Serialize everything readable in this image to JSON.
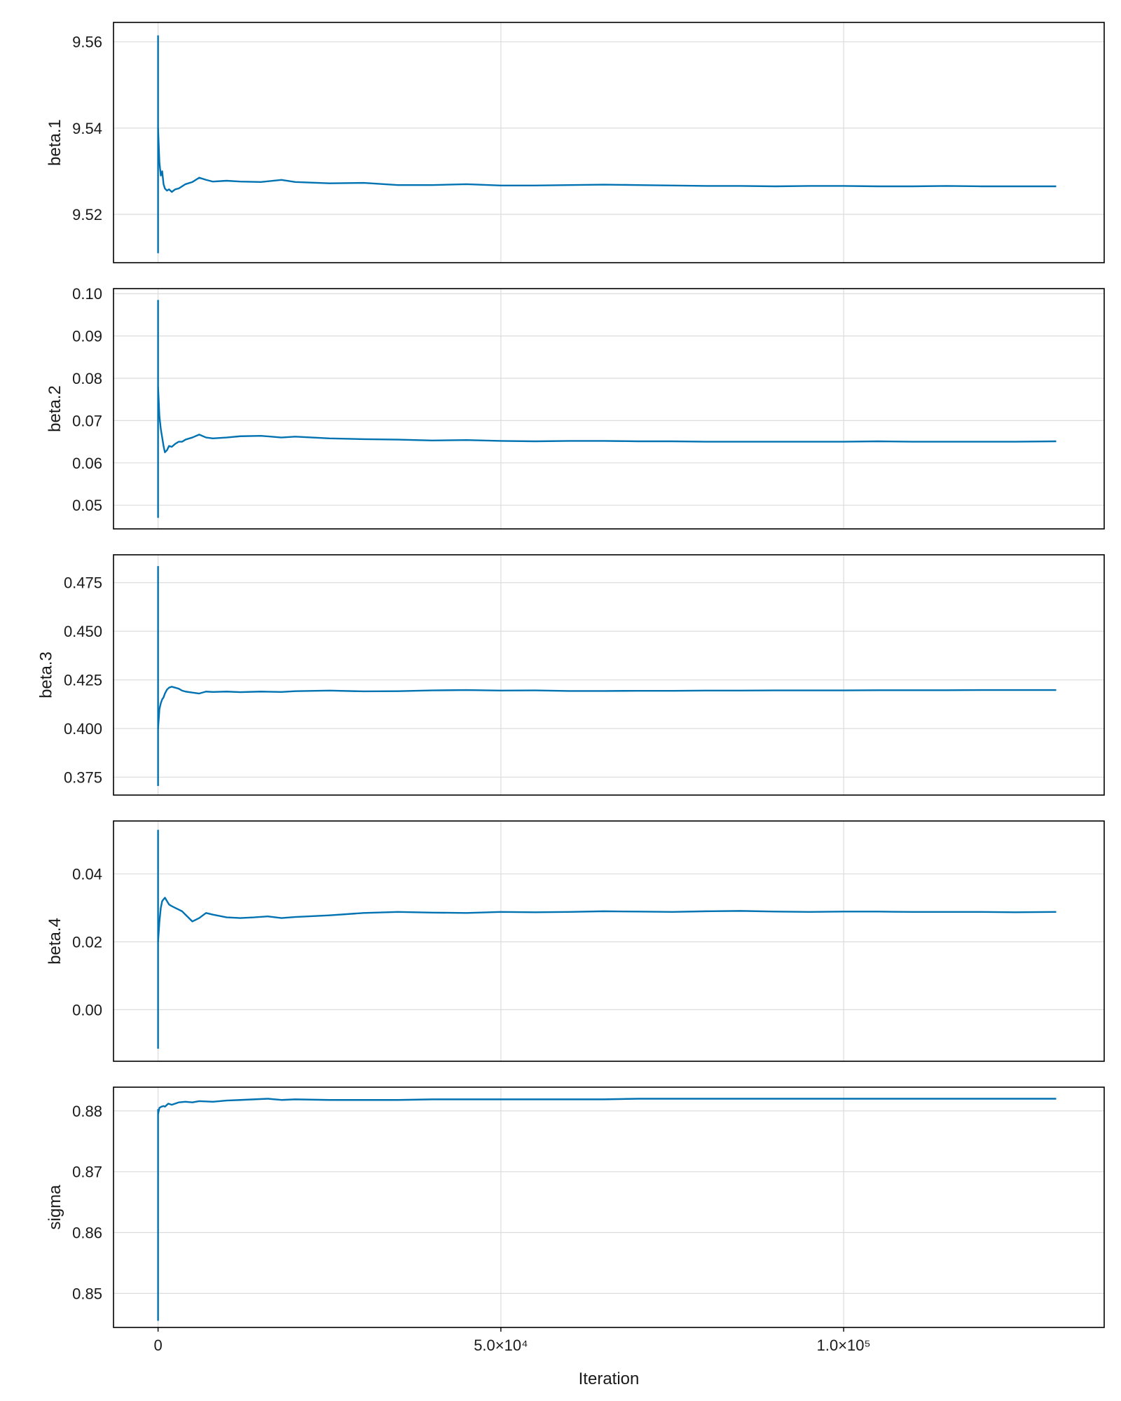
{
  "chart_data": {
    "type": "line",
    "xlabel": "Iteration",
    "xlim": [
      -6500,
      138000
    ],
    "x_ticks": [
      {
        "value": 0,
        "label": "0"
      },
      {
        "value": 50000,
        "label": "5.0×10⁴"
      },
      {
        "value": 100000,
        "label": "1.0×10⁵"
      }
    ],
    "line_color": "#0072B2",
    "grid": true,
    "panels": [
      {
        "ylabel": "beta.1",
        "ylim": [
          9.5088,
          9.5645
        ],
        "y_ticks": [
          {
            "value": 9.52,
            "label": "9.52"
          },
          {
            "value": 9.54,
            "label": "9.54"
          },
          {
            "value": 9.56,
            "label": "9.56"
          }
        ],
        "spike": {
          "x": 0,
          "min": 9.511,
          "max": 9.5615
        },
        "x": [
          0,
          200,
          400,
          600,
          800,
          1000,
          1300,
          1600,
          2000,
          2500,
          3000,
          3500,
          4000,
          5000,
          6000,
          7000,
          8000,
          10000,
          12000,
          15000,
          18000,
          20000,
          25000,
          30000,
          35000,
          40000,
          45000,
          50000,
          55000,
          60000,
          65000,
          70000,
          75000,
          80000,
          85000,
          90000,
          95000,
          100000,
          105000,
          110000,
          115000,
          120000,
          125000,
          131000
        ],
        "y": [
          9.54,
          9.532,
          9.529,
          9.53,
          9.527,
          9.526,
          9.5255,
          9.5258,
          9.5252,
          9.5258,
          9.526,
          9.5265,
          9.527,
          9.5275,
          9.5285,
          9.528,
          9.5276,
          9.5278,
          9.5276,
          9.5275,
          9.528,
          9.5275,
          9.5272,
          9.5273,
          9.5268,
          9.5268,
          9.527,
          9.5267,
          9.5267,
          9.5268,
          9.5269,
          9.5268,
          9.5267,
          9.5266,
          9.5266,
          9.5265,
          9.5266,
          9.5266,
          9.5265,
          9.5265,
          9.5266,
          9.5265,
          9.5265,
          9.5265
        ]
      },
      {
        "ylabel": "beta.2",
        "ylim": [
          0.0444,
          0.1012
        ],
        "y_ticks": [
          {
            "value": 0.05,
            "label": "0.05"
          },
          {
            "value": 0.06,
            "label": "0.06"
          },
          {
            "value": 0.07,
            "label": "0.07"
          },
          {
            "value": 0.08,
            "label": "0.08"
          },
          {
            "value": 0.09,
            "label": "0.09"
          },
          {
            "value": 0.1,
            "label": "0.10"
          }
        ],
        "spike": {
          "x": 0,
          "min": 0.047,
          "max": 0.0985
        },
        "x": [
          0,
          200,
          400,
          600,
          800,
          1000,
          1300,
          1600,
          2000,
          2500,
          3000,
          3500,
          4000,
          5000,
          6000,
          7000,
          8000,
          10000,
          12000,
          15000,
          18000,
          20000,
          25000,
          30000,
          35000,
          40000,
          45000,
          50000,
          55000,
          60000,
          65000,
          70000,
          75000,
          80000,
          85000,
          90000,
          95000,
          100000,
          105000,
          110000,
          115000,
          120000,
          125000,
          131000
        ],
        "y": [
          0.078,
          0.071,
          0.068,
          0.066,
          0.064,
          0.0625,
          0.063,
          0.064,
          0.0638,
          0.0645,
          0.065,
          0.065,
          0.0655,
          0.066,
          0.0667,
          0.066,
          0.0658,
          0.066,
          0.0663,
          0.0664,
          0.066,
          0.0662,
          0.0658,
          0.0656,
          0.0655,
          0.0653,
          0.0654,
          0.0652,
          0.0651,
          0.0652,
          0.0652,
          0.0651,
          0.0651,
          0.065,
          0.065,
          0.065,
          0.065,
          0.065,
          0.0651,
          0.065,
          0.065,
          0.065,
          0.065,
          0.0651
        ]
      },
      {
        "ylabel": "beta.3",
        "ylim": [
          0.3658,
          0.4893
        ],
        "y_ticks": [
          {
            "value": 0.375,
            "label": "0.375"
          },
          {
            "value": 0.4,
            "label": "0.400"
          },
          {
            "value": 0.425,
            "label": "0.425"
          },
          {
            "value": 0.45,
            "label": "0.450"
          },
          {
            "value": 0.475,
            "label": "0.475"
          }
        ],
        "spike": {
          "x": 0,
          "min": 0.3705,
          "max": 0.4835
        },
        "x": [
          0,
          200,
          400,
          600,
          800,
          1000,
          1300,
          1600,
          2000,
          2500,
          3000,
          3500,
          4000,
          5000,
          6000,
          7000,
          8000,
          10000,
          12000,
          15000,
          18000,
          20000,
          25000,
          30000,
          35000,
          40000,
          45000,
          50000,
          55000,
          60000,
          65000,
          70000,
          75000,
          80000,
          85000,
          90000,
          95000,
          100000,
          105000,
          110000,
          115000,
          120000,
          125000,
          131000
        ],
        "y": [
          0.4,
          0.41,
          0.413,
          0.415,
          0.416,
          0.418,
          0.42,
          0.421,
          0.4215,
          0.421,
          0.4205,
          0.4195,
          0.419,
          0.4185,
          0.418,
          0.419,
          0.4188,
          0.419,
          0.4187,
          0.419,
          0.4188,
          0.4192,
          0.4195,
          0.4191,
          0.4192,
          0.4196,
          0.4198,
          0.4195,
          0.4196,
          0.4193,
          0.4193,
          0.4194,
          0.4194,
          0.4195,
          0.4195,
          0.4196,
          0.4196,
          0.4196,
          0.4197,
          0.4197,
          0.4197,
          0.4198,
          0.4198,
          0.4198
        ]
      },
      {
        "ylabel": "beta.4",
        "ylim": [
          -0.0152,
          0.0556
        ],
        "y_ticks": [
          {
            "value": 0.0,
            "label": "0.00"
          },
          {
            "value": 0.02,
            "label": "0.02"
          },
          {
            "value": 0.04,
            "label": "0.04"
          }
        ],
        "spike": {
          "x": 0,
          "min": -0.0115,
          "max": 0.053
        },
        "x": [
          0,
          200,
          400,
          600,
          800,
          1000,
          1300,
          1600,
          2000,
          2500,
          3000,
          3500,
          4000,
          5000,
          6000,
          7000,
          8000,
          10000,
          12000,
          14000,
          16000,
          18000,
          20000,
          25000,
          30000,
          35000,
          40000,
          45000,
          50000,
          55000,
          60000,
          65000,
          70000,
          75000,
          80000,
          85000,
          90000,
          95000,
          100000,
          105000,
          110000,
          115000,
          120000,
          125000,
          131000
        ],
        "y": [
          0.02,
          0.026,
          0.03,
          0.032,
          0.0325,
          0.033,
          0.032,
          0.031,
          0.0305,
          0.03,
          0.0295,
          0.029,
          0.028,
          0.026,
          0.027,
          0.0285,
          0.028,
          0.0272,
          0.027,
          0.0272,
          0.0275,
          0.027,
          0.0273,
          0.0278,
          0.0285,
          0.0288,
          0.0286,
          0.0285,
          0.0288,
          0.0287,
          0.0288,
          0.029,
          0.0289,
          0.0288,
          0.029,
          0.0291,
          0.0289,
          0.0288,
          0.0289,
          0.0289,
          0.0288,
          0.0288,
          0.0288,
          0.0287,
          0.0288
        ]
      },
      {
        "ylabel": "sigma",
        "ylim": [
          0.8444,
          0.8839
        ],
        "y_ticks": [
          {
            "value": 0.85,
            "label": "0.85"
          },
          {
            "value": 0.86,
            "label": "0.86"
          },
          {
            "value": 0.87,
            "label": "0.87"
          },
          {
            "value": 0.88,
            "label": "0.88"
          }
        ],
        "spike": {
          "x": 0,
          "min": 0.8455,
          "max": 0.8803
        },
        "x": [
          0,
          200,
          500,
          800,
          1000,
          1500,
          2000,
          3000,
          4000,
          5000,
          6000,
          8000,
          10000,
          12000,
          14000,
          16000,
          18000,
          20000,
          25000,
          30000,
          35000,
          40000,
          45000,
          50000,
          55000,
          60000,
          65000,
          70000,
          75000,
          80000,
          85000,
          90000,
          95000,
          100000,
          105000,
          110000,
          115000,
          120000,
          125000,
          131000
        ],
        "y": [
          0.8795,
          0.8805,
          0.8807,
          0.8808,
          0.8807,
          0.8812,
          0.881,
          0.8814,
          0.8815,
          0.8814,
          0.8816,
          0.8815,
          0.8817,
          0.8818,
          0.8819,
          0.882,
          0.8818,
          0.8819,
          0.8818,
          0.8818,
          0.8818,
          0.8819,
          0.8819,
          0.8819,
          0.8819,
          0.8819,
          0.8819,
          0.882,
          0.882,
          0.882,
          0.882,
          0.882,
          0.882,
          0.882,
          0.882,
          0.882,
          0.882,
          0.882,
          0.882,
          0.882
        ]
      }
    ]
  }
}
